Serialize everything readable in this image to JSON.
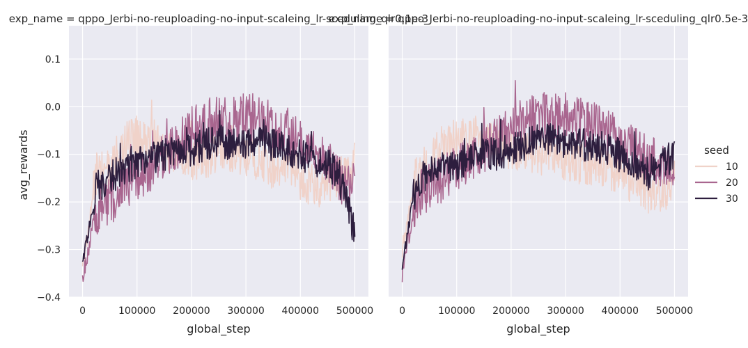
{
  "figure": {
    "panel_titles": [
      "exp_name = qppo_Jerbi-no-reuploading-no-input-scaleing_lr-sceduling_qlr0.1e-3",
      "exp_name = qppo_Jerbi-no-reuploading-no-input-scaleing_lr-sceduling_qlr0.5e-3"
    ]
  },
  "legend": {
    "title": "seed",
    "items": [
      "10",
      "20",
      "30"
    ],
    "colors": [
      "#f0d2c9",
      "#a9668f",
      "#2d1e3e"
    ]
  },
  "chart_data": [
    {
      "type": "line",
      "title": "exp_name = qppo_Jerbi-no-reuploading-no-input-scaleing_lr-sceduling_qlr0.1e-3",
      "xlabel": "global_step",
      "ylabel": "avg_rewards",
      "xlim": [
        -25000,
        525000
      ],
      "ylim": [
        -0.4,
        0.17
      ],
      "xticks": [
        "0",
        "100000",
        "200000",
        "300000",
        "400000",
        "500000"
      ],
      "yticks": [
        "−0.4",
        "−0.3",
        "−0.2",
        "−0.1",
        "0.0",
        "0.1"
      ],
      "grid": true,
      "x": [
        0,
        25000,
        50000,
        75000,
        100000,
        125000,
        150000,
        175000,
        200000,
        225000,
        250000,
        275000,
        300000,
        325000,
        350000,
        375000,
        400000,
        425000,
        450000,
        475000,
        500000
      ],
      "series": [
        {
          "name": "10",
          "values": [
            -0.34,
            -0.14,
            -0.13,
            -0.08,
            -0.06,
            -0.07,
            -0.09,
            -0.1,
            -0.11,
            -0.11,
            -0.09,
            -0.1,
            -0.1,
            -0.12,
            -0.13,
            -0.12,
            -0.15,
            -0.17,
            -0.16,
            -0.14,
            -0.12
          ]
        },
        {
          "name": "20",
          "values": [
            -0.36,
            -0.22,
            -0.2,
            -0.17,
            -0.15,
            -0.13,
            -0.1,
            -0.08,
            -0.05,
            -0.03,
            -0.02,
            -0.03,
            -0.02,
            -0.03,
            -0.04,
            -0.05,
            -0.08,
            -0.1,
            -0.12,
            -0.16,
            -0.16
          ]
        },
        {
          "name": "30",
          "values": [
            -0.33,
            -0.17,
            -0.15,
            -0.13,
            -0.12,
            -0.11,
            -0.1,
            -0.09,
            -0.09,
            -0.08,
            -0.07,
            -0.08,
            -0.08,
            -0.07,
            -0.08,
            -0.09,
            -0.1,
            -0.11,
            -0.12,
            -0.15,
            -0.27
          ]
        }
      ]
    },
    {
      "type": "line",
      "title": "exp_name = qppo_Jerbi-no-reuploading-no-input-scaleing_lr-sceduling_qlr0.5e-3",
      "xlabel": "global_step",
      "ylabel": "",
      "xlim": [
        -25000,
        525000
      ],
      "ylim": [
        -0.4,
        0.17
      ],
      "xticks": [
        "0",
        "100000",
        "200000",
        "300000",
        "400000",
        "500000"
      ],
      "grid": true,
      "x": [
        0,
        25000,
        50000,
        75000,
        100000,
        125000,
        150000,
        175000,
        200000,
        225000,
        250000,
        275000,
        300000,
        325000,
        350000,
        375000,
        400000,
        425000,
        450000,
        475000,
        500000
      ],
      "series": [
        {
          "name": "10",
          "values": [
            -0.3,
            -0.14,
            -0.12,
            -0.08,
            -0.07,
            -0.06,
            -0.07,
            -0.08,
            -0.09,
            -0.1,
            -0.1,
            -0.1,
            -0.11,
            -0.12,
            -0.12,
            -0.13,
            -0.14,
            -0.16,
            -0.18,
            -0.2,
            -0.14
          ]
        },
        {
          "name": "20",
          "values": [
            -0.35,
            -0.19,
            -0.17,
            -0.15,
            -0.13,
            -0.11,
            -0.09,
            -0.07,
            -0.05,
            -0.03,
            -0.02,
            -0.02,
            -0.03,
            -0.03,
            -0.04,
            -0.05,
            -0.07,
            -0.09,
            -0.11,
            -0.12,
            -0.12
          ]
        },
        {
          "name": "30",
          "values": [
            -0.33,
            -0.16,
            -0.14,
            -0.13,
            -0.12,
            -0.11,
            -0.1,
            -0.1,
            -0.09,
            -0.08,
            -0.07,
            -0.07,
            -0.08,
            -0.08,
            -0.08,
            -0.09,
            -0.1,
            -0.12,
            -0.14,
            -0.12,
            -0.1
          ]
        }
      ]
    }
  ]
}
